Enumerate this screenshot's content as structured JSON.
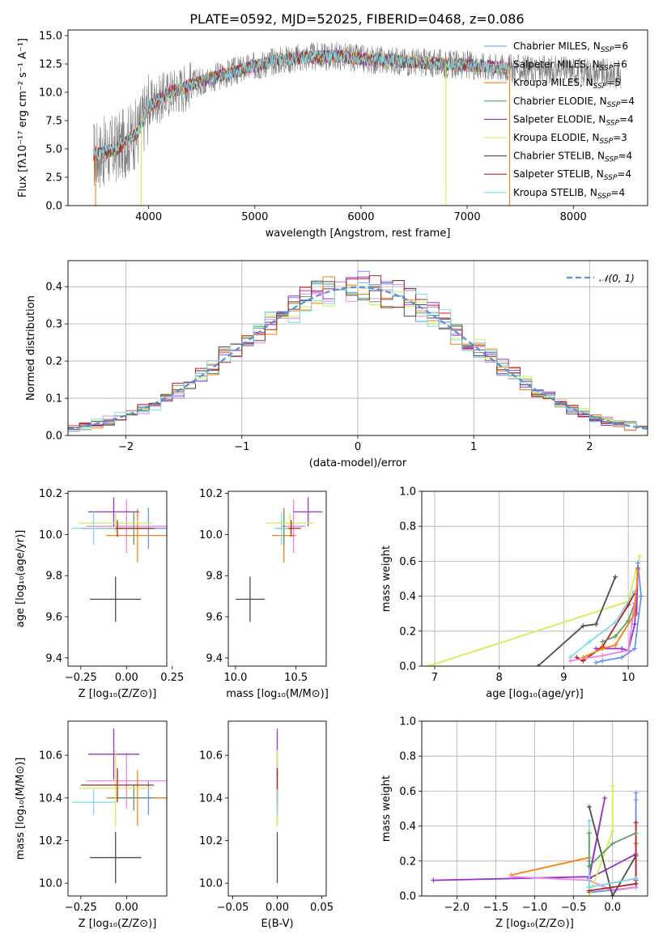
{
  "figure": {
    "title": "PLATE=0592, MJD=52025, FIBERID=0468, z=0.086"
  },
  "colors": {
    "Chabrier MILES": "#6495ed",
    "Salpeter MILES": "#ee82ee",
    "Kroupa MILES": "#ff7f0e",
    "Chabrier ELODIE": "#5f9e60",
    "Salpeter ELODIE": "#9932cc",
    "Kroupa ELODIE": "#d4ed52",
    "Chabrier STELIB": "#4d4d4d",
    "Salpeter STELIB": "#b22222",
    "Kroupa STELIB": "#7fdbe9",
    "data": "#808080",
    "gaussian": "#5a8fd6"
  },
  "chart_data": [
    {
      "id": "spectrum",
      "type": "line",
      "title": "PLATE=0592, MJD=52025, FIBERID=0468, z=0.086",
      "xlabel": "wavelength [Angstrom, rest frame]",
      "ylabel": "Flux [fλ10⁻¹⁷ erg cm⁻² s⁻¹ A⁻¹]",
      "xlim": [
        3240,
        8700
      ],
      "ylim": [
        0,
        15.5
      ],
      "xticks": [
        "4000",
        "5000",
        "6000",
        "7000",
        "8000"
      ],
      "yticks": [
        "0.0",
        "2.5",
        "5.0",
        "7.5",
        "10.0",
        "12.5",
        "15.0"
      ],
      "legend_loc": "right",
      "legend": [
        {
          "label": "Chabrier MILES, N",
          "sub": "SSP",
          "suffix": "=6"
        },
        {
          "label": "Salpeter MILES, N",
          "sub": "SSP",
          "suffix": "=6"
        },
        {
          "label": "Kroupa MILES, N",
          "sub": "SSP",
          "suffix": "=5"
        },
        {
          "label": "Chabrier ELODIE, N",
          "sub": "SSP",
          "suffix": "=4"
        },
        {
          "label": "Salpeter ELODIE, N",
          "sub": "SSP",
          "suffix": "=4"
        },
        {
          "label": "Kroupa ELODIE, N",
          "sub": "SSP",
          "suffix": "=3"
        },
        {
          "label": "Chabrier STELIB, N",
          "sub": "SSP",
          "suffix": "=4"
        },
        {
          "label": "Salpeter STELIB, N",
          "sub": "SSP",
          "suffix": "=4"
        },
        {
          "label": "Kroupa STELIB, N",
          "sub": "SSP",
          "suffix": "=4"
        }
      ],
      "continuum": {
        "x": [
          3500,
          3700,
          3900,
          4000,
          4200,
          4500,
          4800,
          5000,
          5200,
          5500,
          5800,
          6000,
          6300,
          6600,
          7000,
          7300,
          7600,
          8000,
          8400
        ],
        "y": [
          4.5,
          5.0,
          6.5,
          8.8,
          10.0,
          11.0,
          11.8,
          12.3,
          12.8,
          13.1,
          13.2,
          12.9,
          12.8,
          12.6,
          12.4,
          12.2,
          12.0,
          11.9,
          11.6
        ]
      },
      "data_range": [
        3480,
        8450
      ],
      "model_range": [
        3480,
        7400
      ],
      "drops": [
        {
          "x": 3500,
          "series": "Kroupa MILES"
        },
        {
          "x": 3930,
          "series": "Kroupa ELODIE"
        },
        {
          "x": 6800,
          "series": "Kroupa ELODIE"
        },
        {
          "x": 7400,
          "series": "Kroupa MILES"
        }
      ]
    },
    {
      "id": "residual_histogram",
      "type": "line",
      "xlabel": "(data-model)/error",
      "ylabel": "Normed distribution",
      "xlim": [
        -2.5,
        2.5
      ],
      "ylim": [
        0,
        0.47
      ],
      "grid": true,
      "xticks": [
        "−2",
        "−1",
        "0",
        "1",
        "2"
      ],
      "yticks": [
        "0.0",
        "0.1",
        "0.2",
        "0.3",
        "0.4"
      ],
      "legend_loc": "top-right",
      "legend_label": "𝒩(0, 1)",
      "bin_width": 0.1,
      "bin_range": [
        -2.5,
        2.5
      ]
    },
    {
      "id": "age_vs_Z",
      "type": "scatter",
      "xlabel": "Z [log₁₀(Z/Z⊙)]",
      "ylabel": "age  [log₁₀(age/yr)]",
      "xlim": [
        -0.32,
        0.22
      ],
      "ylim": [
        9.36,
        10.21
      ],
      "xticks": [
        "−0.25",
        "0.00",
        "0.25"
      ],
      "yticks": [
        "9.4",
        "9.6",
        "9.8",
        "10.0",
        "10.2"
      ],
      "points": [
        {
          "series": "Chabrier MILES",
          "x": 0.12,
          "y": 10.03,
          "xerr": 0.17,
          "yerr": 0.1
        },
        {
          "series": "Salpeter MILES",
          "x": 0.0,
          "y": 10.04,
          "xerr": 0.22,
          "yerr": 0.13
        },
        {
          "series": "Kroupa MILES",
          "x": 0.06,
          "y": 9.995,
          "xerr": 0.17,
          "yerr": 0.13
        },
        {
          "series": "Chabrier ELODIE",
          "x": 0.04,
          "y": 10.03,
          "xerr": 0.12,
          "yerr": 0.08
        },
        {
          "series": "Salpeter ELODIE",
          "x": -0.07,
          "y": 10.11,
          "xerr": 0.14,
          "yerr": 0.07
        },
        {
          "series": "Kroupa ELODIE",
          "x": -0.06,
          "y": 10.055,
          "xerr": 0.2,
          "yerr": 0.05
        },
        {
          "series": "Chabrier STELIB",
          "x": -0.06,
          "y": 9.685,
          "xerr": 0.14,
          "yerr": 0.11
        },
        {
          "series": "Salpeter STELIB",
          "x": -0.05,
          "y": 10.03,
          "xerr": 0.2,
          "yerr": 0.04
        },
        {
          "series": "Kroupa STELIB",
          "x": -0.18,
          "y": 10.03,
          "xerr": 0.12,
          "yerr": 0.08
        }
      ]
    },
    {
      "id": "age_vs_mass",
      "type": "scatter",
      "xlabel": "mass [log₁₀(M/M⊙)]",
      "ylabel": "",
      "xlim": [
        9.94,
        10.75
      ],
      "ylim": [
        9.36,
        10.21
      ],
      "xticks": [
        "10.0",
        "10.5"
      ],
      "yticks": [
        "9.4",
        "9.6",
        "9.8",
        "10.0",
        "10.2"
      ],
      "points": [
        {
          "series": "Chabrier MILES",
          "x": 10.4,
          "y": 10.03,
          "xerr": 0.07,
          "yerr": 0.1
        },
        {
          "series": "Salpeter MILES",
          "x": 10.48,
          "y": 10.04,
          "xerr": 0.1,
          "yerr": 0.13
        },
        {
          "series": "Kroupa MILES",
          "x": 10.4,
          "y": 9.995,
          "xerr": 0.1,
          "yerr": 0.13
        },
        {
          "series": "Chabrier ELODIE",
          "x": 10.4,
          "y": 10.03,
          "xerr": 0.05,
          "yerr": 0.08
        },
        {
          "series": "Salpeter ELODIE",
          "x": 10.6,
          "y": 10.11,
          "xerr": 0.12,
          "yerr": 0.07
        },
        {
          "series": "Kroupa ELODIE",
          "x": 10.45,
          "y": 10.055,
          "xerr": 0.2,
          "yerr": 0.05
        },
        {
          "series": "Chabrier STELIB",
          "x": 10.12,
          "y": 9.685,
          "xerr": 0.12,
          "yerr": 0.11
        },
        {
          "series": "Salpeter STELIB",
          "x": 10.46,
          "y": 10.03,
          "xerr": 0.08,
          "yerr": 0.04
        },
        {
          "series": "Kroupa STELIB",
          "x": 10.38,
          "y": 10.03,
          "xerr": 0.06,
          "yerr": 0.08
        }
      ]
    },
    {
      "id": "weight_vs_age",
      "type": "line",
      "xlabel": "age  [log₁₀(age/yr)]",
      "ylabel": "mass weight",
      "xlim": [
        6.8,
        10.3
      ],
      "ylim": [
        0,
        1
      ],
      "grid": true,
      "xticks": [
        "7",
        "8",
        "9",
        "10"
      ],
      "yticks": [
        "0.0",
        "0.2",
        "0.4",
        "0.6",
        "0.8",
        "1.0"
      ],
      "series": [
        {
          "name": "Kroupa ELODIE",
          "x": [
            6.9,
            10.0,
            10.18
          ],
          "y": [
            0.0,
            0.37,
            0.63
          ]
        },
        {
          "name": "Chabrier STELIB",
          "x": [
            8.6,
            9.3,
            9.5,
            9.8
          ],
          "y": [
            0.0,
            0.23,
            0.24,
            0.51
          ]
        },
        {
          "name": "Chabrier MILES",
          "x": [
            9.5,
            9.6,
            9.9,
            10.1,
            10.2,
            10.15
          ],
          "y": [
            0.02,
            0.03,
            0.05,
            0.1,
            0.4,
            0.59
          ]
        },
        {
          "name": "Salpeter ELODIE",
          "x": [
            9.5,
            9.9,
            10.0,
            10.1,
            10.15,
            10.13
          ],
          "y": [
            0.1,
            0.1,
            0.09,
            0.24,
            0.56,
            0.3
          ]
        },
        {
          "name": "Salpeter STELIB",
          "x": [
            9.2,
            9.3,
            9.6,
            10.0,
            10.1
          ],
          "y": [
            0.05,
            0.03,
            0.11,
            0.35,
            0.42
          ]
        },
        {
          "name": "Kroupa STELIB",
          "x": [
            9.1,
            9.4,
            9.8,
            10.1
          ],
          "y": [
            0.05,
            0.14,
            0.25,
            0.43
          ]
        },
        {
          "name": "Chabrier ELODIE",
          "x": [
            9.6,
            9.8,
            10.0,
            10.1
          ],
          "y": [
            0.14,
            0.17,
            0.26,
            0.36
          ]
        },
        {
          "name": "Salpeter MILES",
          "x": [
            9.1,
            9.6,
            10.0,
            10.15
          ],
          "y": [
            0.03,
            0.06,
            0.09,
            0.5
          ]
        },
        {
          "name": "Kroupa MILES",
          "x": [
            9.3,
            9.6,
            9.8,
            10.1,
            10.15
          ],
          "y": [
            0.05,
            0.1,
            0.12,
            0.3,
            0.55
          ]
        }
      ]
    },
    {
      "id": "mass_vs_Z",
      "type": "scatter",
      "xlabel": "Z [log₁₀(Z/Z⊙)]",
      "ylabel": "mass [log₁₀(M/M⊙)]",
      "xlim": [
        -0.32,
        0.22
      ],
      "ylim": [
        9.94,
        10.76
      ],
      "xticks": [
        "−0.25",
        "0.00"
      ],
      "yticks": [
        "10.0",
        "10.2",
        "10.4",
        "10.6"
      ],
      "points": [
        {
          "series": "Chabrier MILES",
          "x": 0.12,
          "y": 10.4,
          "xerr": 0.17,
          "yerr": 0.08
        },
        {
          "series": "Salpeter MILES",
          "x": 0.0,
          "y": 10.48,
          "xerr": 0.22,
          "yerr": 0.13
        },
        {
          "series": "Kroupa MILES",
          "x": 0.06,
          "y": 10.4,
          "xerr": 0.17,
          "yerr": 0.13
        },
        {
          "series": "Chabrier ELODIE",
          "x": 0.04,
          "y": 10.4,
          "xerr": 0.12,
          "yerr": 0.06
        },
        {
          "series": "Salpeter ELODIE",
          "x": -0.07,
          "y": 10.605,
          "xerr": 0.14,
          "yerr": 0.12
        },
        {
          "series": "Kroupa ELODIE",
          "x": -0.06,
          "y": 10.445,
          "xerr": 0.2,
          "yerr": 0.18
        },
        {
          "series": "Chabrier STELIB",
          "x": -0.06,
          "y": 10.12,
          "xerr": 0.14,
          "yerr": 0.12
        },
        {
          "series": "Salpeter STELIB",
          "x": -0.05,
          "y": 10.46,
          "xerr": 0.2,
          "yerr": 0.08
        },
        {
          "series": "Kroupa STELIB",
          "x": -0.18,
          "y": 10.38,
          "xerr": 0.12,
          "yerr": 0.06
        }
      ]
    },
    {
      "id": "mass_vs_EBV",
      "type": "scatter",
      "xlabel": "E(B-V)",
      "ylabel": "",
      "xlim": [
        -0.055,
        0.055
      ],
      "ylim": [
        9.94,
        10.76
      ],
      "xticks": [
        "−0.05",
        "0.00",
        "0.05"
      ],
      "yticks": [
        "10.0",
        "10.2",
        "10.4",
        "10.6"
      ],
      "points": [
        {
          "series": "Chabrier MILES",
          "x": 0,
          "y": 10.4,
          "yerr": 0.08
        },
        {
          "series": "Salpeter MILES",
          "x": 0,
          "y": 10.48,
          "yerr": 0.13
        },
        {
          "series": "Kroupa MILES",
          "x": 0,
          "y": 10.4,
          "yerr": 0.13
        },
        {
          "series": "Chabrier ELODIE",
          "x": 0,
          "y": 10.4,
          "yerr": 0.06
        },
        {
          "series": "Salpeter ELODIE",
          "x": 0,
          "y": 10.605,
          "yerr": 0.12
        },
        {
          "series": "Kroupa ELODIE",
          "x": 0,
          "y": 10.445,
          "yerr": 0.18
        },
        {
          "series": "Chabrier STELIB",
          "x": 0,
          "y": 10.12,
          "yerr": 0.12
        },
        {
          "series": "Salpeter STELIB",
          "x": 0,
          "y": 10.46,
          "yerr": 0.08
        },
        {
          "series": "Kroupa STELIB",
          "x": 0,
          "y": 10.38,
          "yerr": 0.06
        }
      ]
    },
    {
      "id": "weight_vs_Z",
      "type": "line",
      "xlabel": "Z [log₁₀(Z/Z⊙)]",
      "ylabel": "mass weight",
      "xlim": [
        -2.45,
        0.45
      ],
      "ylim": [
        0,
        1
      ],
      "grid": true,
      "xticks": [
        "−2.0",
        "−1.5",
        "−1.0",
        "−0.5",
        "0.0"
      ],
      "yticks": [
        "0.0",
        "0.2",
        "0.4",
        "0.6",
        "0.8",
        "1.0"
      ],
      "series": [
        {
          "name": "Salpeter ELODIE",
          "x": [
            -2.3,
            -0.3,
            -0.1,
            -0.3,
            0.3,
            0.3,
            0.3
          ],
          "y": [
            0.09,
            0.11,
            0.56,
            0.1,
            0.24,
            0.3,
            0.09
          ]
        },
        {
          "name": "Kroupa MILES",
          "x": [
            -1.3,
            -0.3,
            -0.3,
            0.3,
            0.3,
            0.3
          ],
          "y": [
            0.12,
            0.22,
            0.05,
            0.1,
            0.55,
            0.3
          ]
        },
        {
          "name": "Chabrier MILES",
          "x": [
            -0.3,
            -0.3,
            0.3,
            0.3
          ],
          "y": [
            0.2,
            0.02,
            0.05,
            0.59
          ]
        },
        {
          "name": "Salpeter MILES",
          "x": [
            -1.3,
            -0.3,
            0.0,
            0.3
          ],
          "y": [
            0.11,
            0.09,
            0.03,
            0.05
          ]
        },
        {
          "name": "Kroupa ELODIE",
          "x": [
            -0.3,
            0.0,
            0.0
          ],
          "y": [
            0.0,
            0.37,
            0.63
          ]
        },
        {
          "name": "Chabrier STELIB",
          "x": [
            -0.3,
            0.0,
            0.0,
            0.3
          ],
          "y": [
            0.51,
            0.0,
            0.0,
            0.23
          ]
        },
        {
          "name": "Salpeter STELIB",
          "x": [
            -0.3,
            -0.3,
            0.3,
            0.3
          ],
          "y": [
            0.03,
            0.03,
            0.07,
            0.42
          ]
        },
        {
          "name": "Kroupa STELIB",
          "x": [
            -0.3,
            -0.3,
            0.3
          ],
          "y": [
            0.43,
            0.05,
            0.1
          ]
        },
        {
          "name": "Chabrier ELODIE",
          "x": [
            -0.3,
            -0.3,
            0.0,
            0.3
          ],
          "y": [
            0.36,
            0.17,
            0.3,
            0.36
          ]
        }
      ]
    }
  ]
}
